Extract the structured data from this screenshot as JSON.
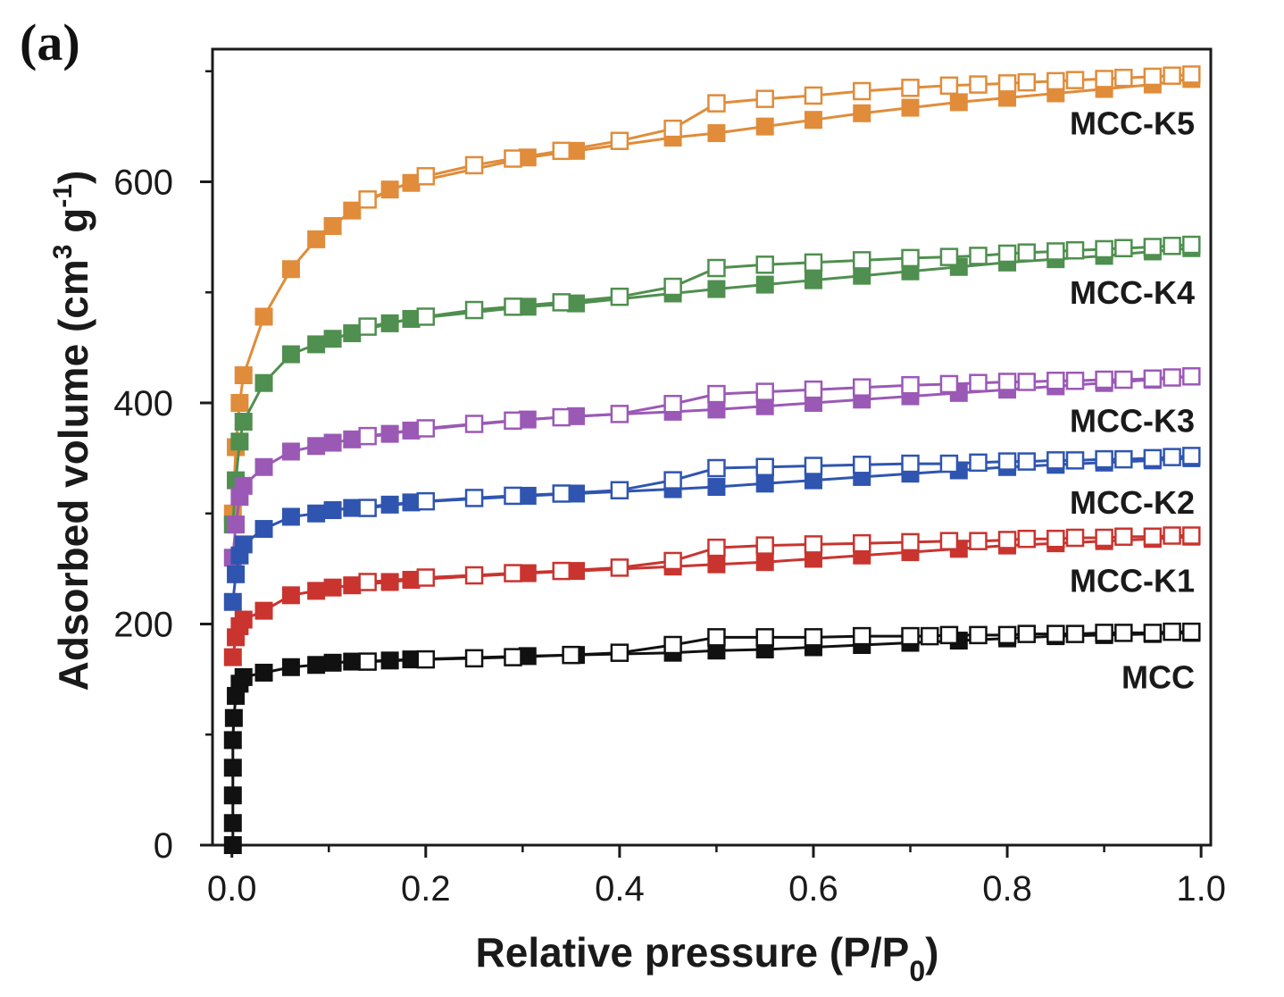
{
  "panel_label": "(a)",
  "chart_data": {
    "type": "line",
    "xlabel": "Relative pressure (P/P0)",
    "ylabel": "Adsorbed volume (cm3 g-1)",
    "xlim": [
      -0.02,
      1.01
    ],
    "ylim": [
      0,
      720
    ],
    "xticks": [
      "0.0",
      "0.2",
      "0.4",
      "0.6",
      "0.8",
      "1.0"
    ],
    "yticks": [
      "0",
      "200",
      "400",
      "600"
    ],
    "grid": false,
    "legend": "none; series labelled inline at right",
    "series": [
      {
        "name": "MCC-K5",
        "color": "#e08c3a",
        "adsorption": {
          "x": [
            0.001,
            0.004,
            0.008,
            0.012,
            0.033,
            0.061,
            0.087,
            0.104,
            0.124,
            0.163,
            0.185,
            0.305,
            0.355,
            0.455,
            0.5,
            0.55,
            0.6,
            0.65,
            0.7,
            0.75,
            0.8,
            0.85,
            0.9,
            0.95,
            0.99
          ],
          "y": [
            300,
            360,
            400,
            425,
            478,
            521,
            548,
            560,
            574,
            593,
            599,
            622,
            628,
            640,
            644,
            650,
            656,
            662,
            667,
            672,
            676,
            680,
            684,
            688,
            693
          ]
        },
        "desorption": {
          "x": [
            0.99,
            0.97,
            0.95,
            0.92,
            0.9,
            0.87,
            0.85,
            0.82,
            0.8,
            0.77,
            0.74,
            0.7,
            0.65,
            0.6,
            0.55,
            0.5,
            0.455,
            0.4,
            0.34,
            0.29,
            0.25,
            0.2,
            0.14
          ],
          "y": [
            697,
            696,
            695,
            694,
            693,
            692,
            691,
            690,
            689,
            688,
            687,
            685,
            682,
            678,
            675,
            671,
            648,
            637,
            628,
            621,
            615,
            605,
            584
          ]
        }
      },
      {
        "name": "MCC-K4",
        "color": "#4f8f4f",
        "adsorption": {
          "x": [
            0.001,
            0.004,
            0.008,
            0.012,
            0.033,
            0.061,
            0.087,
            0.104,
            0.124,
            0.163,
            0.185,
            0.305,
            0.355,
            0.455,
            0.5,
            0.55,
            0.6,
            0.65,
            0.7,
            0.75,
            0.8,
            0.85,
            0.9,
            0.95,
            0.99
          ],
          "y": [
            290,
            330,
            365,
            383,
            418,
            444,
            453,
            458,
            463,
            472,
            476,
            487,
            490,
            499,
            503,
            507,
            511,
            515,
            519,
            523,
            527,
            530,
            533,
            537,
            540
          ]
        },
        "desorption": {
          "x": [
            0.99,
            0.97,
            0.95,
            0.92,
            0.9,
            0.87,
            0.85,
            0.82,
            0.8,
            0.77,
            0.74,
            0.7,
            0.65,
            0.6,
            0.55,
            0.5,
            0.455,
            0.4,
            0.34,
            0.29,
            0.25,
            0.2,
            0.14
          ],
          "y": [
            543,
            542,
            541,
            540,
            539,
            538,
            537,
            536,
            535,
            533,
            532,
            531,
            529,
            527,
            525,
            522,
            505,
            496,
            491,
            487,
            484,
            478,
            469
          ]
        }
      },
      {
        "name": "MCC-K3",
        "color": "#9b59b6",
        "adsorption": {
          "x": [
            0.001,
            0.004,
            0.008,
            0.012,
            0.033,
            0.061,
            0.087,
            0.104,
            0.124,
            0.163,
            0.185,
            0.305,
            0.355,
            0.455,
            0.5,
            0.55,
            0.6,
            0.65,
            0.7,
            0.75,
            0.8,
            0.85,
            0.9,
            0.95,
            0.99
          ],
          "y": [
            260,
            290,
            315,
            325,
            342,
            356,
            361,
            364,
            367,
            372,
            375,
            385,
            388,
            392,
            394,
            397,
            400,
            403,
            406,
            409,
            412,
            415,
            418,
            421,
            424
          ]
        },
        "desorption": {
          "x": [
            0.99,
            0.97,
            0.95,
            0.92,
            0.9,
            0.87,
            0.85,
            0.82,
            0.8,
            0.77,
            0.74,
            0.7,
            0.65,
            0.6,
            0.55,
            0.5,
            0.455,
            0.4,
            0.34,
            0.29,
            0.25,
            0.2,
            0.14
          ],
          "y": [
            424,
            423,
            422,
            421,
            421,
            420,
            420,
            419,
            419,
            418,
            417,
            416,
            414,
            412,
            410,
            408,
            399,
            390,
            387,
            384,
            381,
            377,
            370
          ]
        }
      },
      {
        "name": "MCC-K2",
        "color": "#2f55b0",
        "adsorption": {
          "x": [
            0.001,
            0.004,
            0.008,
            0.012,
            0.033,
            0.061,
            0.087,
            0.104,
            0.124,
            0.163,
            0.185,
            0.305,
            0.355,
            0.455,
            0.5,
            0.55,
            0.6,
            0.65,
            0.7,
            0.75,
            0.8,
            0.85,
            0.9,
            0.95,
            0.99
          ],
          "y": [
            220,
            245,
            262,
            272,
            286,
            297,
            300,
            303,
            305,
            308,
            310,
            316,
            318,
            322,
            324,
            327,
            330,
            333,
            336,
            339,
            342,
            344,
            346,
            348,
            350
          ]
        },
        "desorption": {
          "x": [
            0.99,
            0.97,
            0.95,
            0.92,
            0.9,
            0.87,
            0.85,
            0.82,
            0.8,
            0.77,
            0.74,
            0.7,
            0.65,
            0.6,
            0.55,
            0.5,
            0.455,
            0.4,
            0.34,
            0.29,
            0.25,
            0.2,
            0.14
          ],
          "y": [
            352,
            351,
            350,
            349,
            349,
            348,
            348,
            347,
            347,
            346,
            345,
            345,
            344,
            343,
            342,
            341,
            330,
            321,
            318,
            316,
            314,
            311,
            305
          ]
        }
      },
      {
        "name": "MCC-K1",
        "color": "#c9342f",
        "adsorption": {
          "x": [
            0.001,
            0.004,
            0.008,
            0.012,
            0.033,
            0.061,
            0.087,
            0.104,
            0.124,
            0.163,
            0.185,
            0.305,
            0.355,
            0.455,
            0.5,
            0.55,
            0.6,
            0.65,
            0.7,
            0.75,
            0.8,
            0.85,
            0.9,
            0.95,
            0.99
          ],
          "y": [
            170,
            188,
            198,
            204,
            212,
            226,
            230,
            233,
            235,
            238,
            240,
            246,
            248,
            252,
            254,
            256,
            259,
            262,
            265,
            268,
            271,
            273,
            275,
            277,
            279
          ]
        },
        "desorption": {
          "x": [
            0.99,
            0.97,
            0.95,
            0.92,
            0.9,
            0.87,
            0.85,
            0.82,
            0.8,
            0.77,
            0.74,
            0.7,
            0.65,
            0.6,
            0.55,
            0.5,
            0.455,
            0.4,
            0.34,
            0.29,
            0.25,
            0.2,
            0.14
          ],
          "y": [
            280,
            280,
            279,
            279,
            278,
            278,
            277,
            277,
            276,
            275,
            275,
            274,
            273,
            272,
            271,
            269,
            257,
            251,
            248,
            246,
            244,
            242,
            238
          ]
        }
      },
      {
        "name": "MCC",
        "color": "#111111",
        "adsorption": {
          "x": [
            0.001,
            0.001,
            0.001,
            0.001,
            0.001,
            0.002,
            0.004,
            0.008,
            0.012,
            0.033,
            0.061,
            0.087,
            0.104,
            0.124,
            0.163,
            0.185,
            0.305,
            0.355,
            0.455,
            0.5,
            0.55,
            0.6,
            0.65,
            0.7,
            0.75,
            0.8,
            0.85,
            0.9,
            0.95,
            0.99
          ],
          "y": [
            0,
            20,
            45,
            70,
            95,
            115,
            135,
            146,
            152,
            156,
            161,
            163,
            165,
            166,
            167,
            168,
            171,
            172,
            174,
            176,
            177,
            179,
            181,
            183,
            185,
            187,
            189,
            190,
            191,
            192
          ]
        },
        "desorption": {
          "x": [
            0.99,
            0.97,
            0.95,
            0.92,
            0.9,
            0.87,
            0.85,
            0.82,
            0.8,
            0.77,
            0.74,
            0.72,
            0.7,
            0.65,
            0.6,
            0.55,
            0.5,
            0.455,
            0.4,
            0.35,
            0.29,
            0.25,
            0.2,
            0.14
          ],
          "y": [
            193,
            193,
            192,
            192,
            192,
            191,
            191,
            191,
            190,
            190,
            190,
            189,
            189,
            189,
            188,
            188,
            188,
            181,
            174,
            172,
            170,
            169,
            168,
            166
          ]
        }
      }
    ]
  }
}
